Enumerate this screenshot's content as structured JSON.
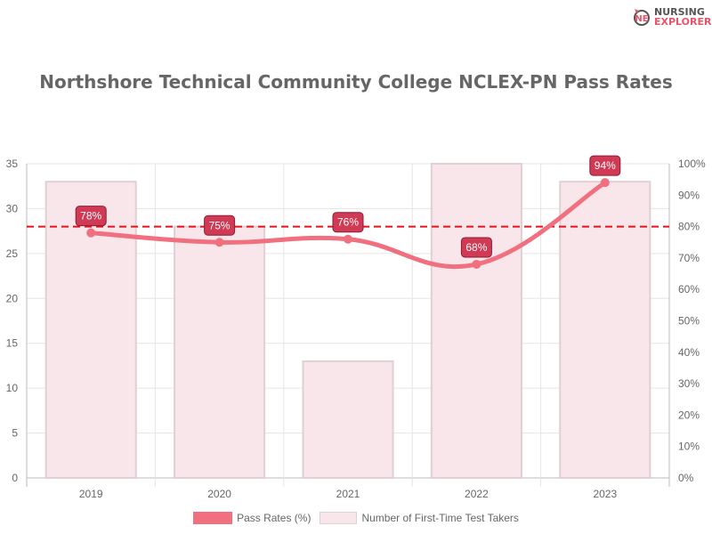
{
  "logo": {
    "line1": "NURSING",
    "line2": "EXPLORER"
  },
  "chart_data": {
    "type": "bar+line",
    "title": "Northshore Technical Community College NCLEX-PN Pass Rates",
    "categories": [
      "2019",
      "2020",
      "2021",
      "2022",
      "2023"
    ],
    "series": [
      {
        "name": "Pass Rates (%)",
        "type": "line",
        "axis": "right",
        "values": [
          78,
          75,
          76,
          68,
          94
        ],
        "color": "#f0707f"
      },
      {
        "name": "Number of First-Time Test Takers",
        "type": "bar",
        "axis": "left",
        "values": [
          33,
          28,
          13,
          35,
          33
        ],
        "color": "#f9e6ea"
      }
    ],
    "left_axis": {
      "range": [
        0,
        35
      ],
      "ticks": [
        "0",
        "5",
        "10",
        "15",
        "20",
        "25",
        "30",
        "35"
      ]
    },
    "right_axis": {
      "range": [
        0,
        100
      ],
      "ticks": [
        "0%",
        "10%",
        "20%",
        "30%",
        "40%",
        "50%",
        "60%",
        "70%",
        "80%",
        "90%",
        "100%"
      ]
    },
    "reference_line": {
      "value": 80,
      "axis": "right",
      "color": "#e8101a",
      "style": "dashed"
    },
    "data_label_suffix": "%",
    "grid": true,
    "legend": "bottom"
  }
}
